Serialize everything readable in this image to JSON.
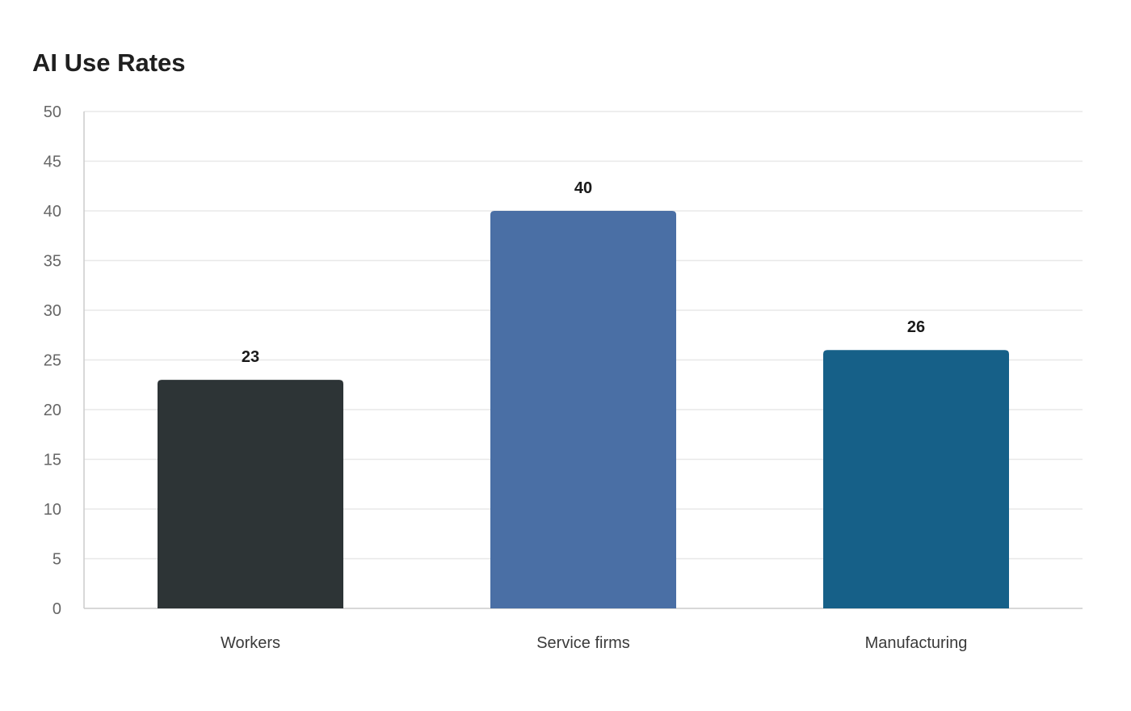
{
  "chart_data": {
    "type": "bar",
    "title": "AI Use Rates",
    "categories": [
      "Workers",
      "Service firms",
      "Manufacturing"
    ],
    "values": [
      23,
      40,
      26
    ],
    "colors": [
      "#2d3436",
      "#4a6fa5",
      "#166088"
    ],
    "ylim": [
      0,
      50
    ],
    "yticks": [
      0,
      5,
      10,
      15,
      20,
      25,
      30,
      35,
      40,
      45,
      50
    ],
    "grid": true,
    "gridColor": "#e8e8e8",
    "axisColor": "#cccccc",
    "legend": "none"
  }
}
